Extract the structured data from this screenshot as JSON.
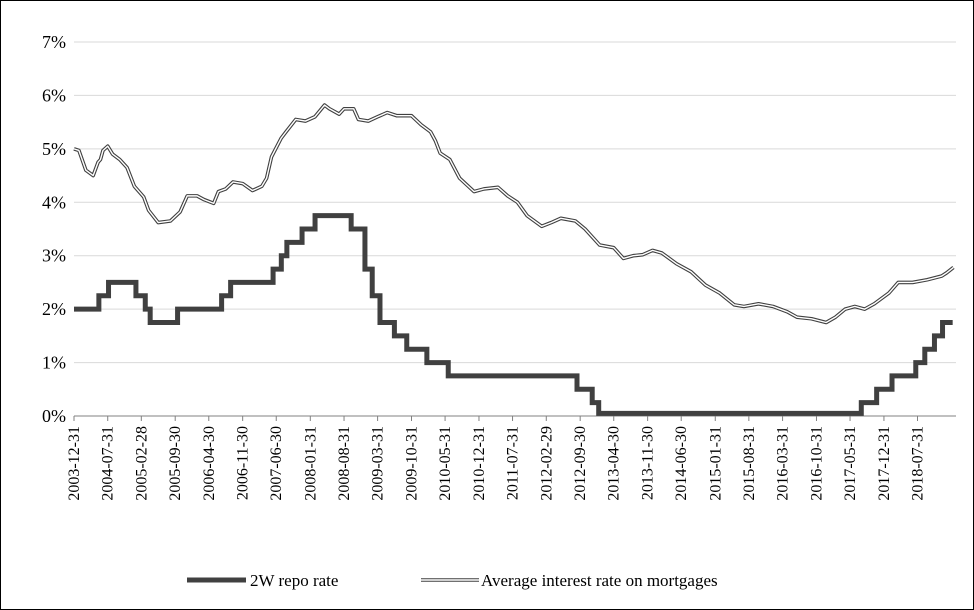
{
  "chart_data": {
    "type": "line",
    "ylim": [
      0,
      7
    ],
    "y_ticks": [
      "0%",
      "1%",
      "2%",
      "3%",
      "4%",
      "5%",
      "6%",
      "7%"
    ],
    "x_range": [
      "2003-12-31",
      "2019-03-31"
    ],
    "x_tick_labels": [
      "2003-12-31",
      "2004-07-31",
      "2005-02-28",
      "2005-09-30",
      "2006-04-30",
      "2006-11-30",
      "2007-06-30",
      "2008-01-31",
      "2008-08-31",
      "2009-03-31",
      "2009-10-31",
      "2010-05-31",
      "2010-12-31",
      "2011-07-31",
      "2012-02-29",
      "2012-09-30",
      "2013-04-30",
      "2013-11-30",
      "2014-06-30",
      "2015-01-31",
      "2015-08-31",
      "2016-03-31",
      "2016-10-31",
      "2017-05-31",
      "2017-12-31",
      "2018-07-31"
    ],
    "grid": "horizontal",
    "legend_position": "bottom",
    "series": [
      {
        "name": "2W repo rate",
        "color": "#404040",
        "style": "thick-step",
        "points": [
          [
            "2003-12-31",
            2.0
          ],
          [
            "2004-06-05",
            2.0
          ],
          [
            "2004-06-05",
            2.25
          ],
          [
            "2004-08-05",
            2.25
          ],
          [
            "2004-08-05",
            2.5
          ],
          [
            "2005-01-25",
            2.5
          ],
          [
            "2005-01-25",
            2.25
          ],
          [
            "2005-03-25",
            2.25
          ],
          [
            "2005-03-25",
            2.0
          ],
          [
            "2005-04-25",
            2.0
          ],
          [
            "2005-04-25",
            1.75
          ],
          [
            "2005-10-15",
            1.75
          ],
          [
            "2005-10-15",
            2.0
          ],
          [
            "2006-07-20",
            2.0
          ],
          [
            "2006-07-20",
            2.25
          ],
          [
            "2006-09-15",
            2.25
          ],
          [
            "2006-09-15",
            2.5
          ],
          [
            "2007-06-10",
            2.5
          ],
          [
            "2007-06-10",
            2.75
          ],
          [
            "2007-08-01",
            2.75
          ],
          [
            "2007-08-01",
            3.0
          ],
          [
            "2007-09-05",
            3.0
          ],
          [
            "2007-09-05",
            3.25
          ],
          [
            "2007-12-10",
            3.25
          ],
          [
            "2007-12-10",
            3.5
          ],
          [
            "2008-03-01",
            3.5
          ],
          [
            "2008-03-01",
            3.75
          ],
          [
            "2008-10-15",
            3.75
          ],
          [
            "2008-10-15",
            3.5
          ],
          [
            "2009-01-10",
            3.5
          ],
          [
            "2009-01-10",
            2.75
          ],
          [
            "2009-02-25",
            2.75
          ],
          [
            "2009-02-25",
            2.25
          ],
          [
            "2009-04-15",
            2.25
          ],
          [
            "2009-04-15",
            1.75
          ],
          [
            "2009-07-15",
            1.75
          ],
          [
            "2009-07-15",
            1.5
          ],
          [
            "2009-10-01",
            1.5
          ],
          [
            "2009-10-01",
            1.25
          ],
          [
            "2010-02-05",
            1.25
          ],
          [
            "2010-02-05",
            1.0
          ],
          [
            "2010-06-20",
            1.0
          ],
          [
            "2010-06-20",
            0.75
          ],
          [
            "2012-09-10",
            0.75
          ],
          [
            "2012-09-10",
            0.5
          ],
          [
            "2012-12-15",
            0.5
          ],
          [
            "2012-12-15",
            0.25
          ],
          [
            "2013-01-25",
            0.25
          ],
          [
            "2013-01-25",
            0.05
          ],
          [
            "2017-08-10",
            0.05
          ],
          [
            "2017-08-10",
            0.25
          ],
          [
            "2017-11-15",
            0.25
          ],
          [
            "2017-11-15",
            0.5
          ],
          [
            "2018-02-20",
            0.5
          ],
          [
            "2018-02-20",
            0.75
          ],
          [
            "2018-07-20",
            0.75
          ],
          [
            "2018-07-20",
            1.0
          ],
          [
            "2018-09-15",
            1.0
          ],
          [
            "2018-09-15",
            1.25
          ],
          [
            "2018-11-15",
            1.25
          ],
          [
            "2018-11-15",
            1.5
          ],
          [
            "2019-01-05",
            1.5
          ],
          [
            "2019-01-05",
            1.75
          ],
          [
            "2019-03-10",
            1.75
          ]
        ]
      },
      {
        "name": "Average interest rate on mortgages",
        "color": "#404040",
        "style": "double",
        "points": [
          [
            "2003-12-31",
            5.0
          ],
          [
            "2004-01-31",
            4.97
          ],
          [
            "2004-03-15",
            4.6
          ],
          [
            "2004-04-30",
            4.5
          ],
          [
            "2004-05-31",
            4.75
          ],
          [
            "2004-06-15",
            4.8
          ],
          [
            "2004-07-01",
            4.97
          ],
          [
            "2004-07-31",
            5.05
          ],
          [
            "2004-08-31",
            4.9
          ],
          [
            "2004-10-15",
            4.8
          ],
          [
            "2004-11-30",
            4.65
          ],
          [
            "2005-01-15",
            4.3
          ],
          [
            "2005-03-15",
            4.1
          ],
          [
            "2005-04-15",
            3.85
          ],
          [
            "2005-06-15",
            3.62
          ],
          [
            "2005-08-31",
            3.65
          ],
          [
            "2005-10-31",
            3.82
          ],
          [
            "2005-12-15",
            4.12
          ],
          [
            "2006-02-15",
            4.12
          ],
          [
            "2006-03-31",
            4.05
          ],
          [
            "2006-05-31",
            3.98
          ],
          [
            "2006-06-30",
            4.2
          ],
          [
            "2006-08-15",
            4.25
          ],
          [
            "2006-09-30",
            4.38
          ],
          [
            "2006-11-30",
            4.35
          ],
          [
            "2007-01-31",
            4.22
          ],
          [
            "2007-03-31",
            4.3
          ],
          [
            "2007-04-30",
            4.45
          ],
          [
            "2007-05-31",
            4.85
          ],
          [
            "2007-07-31",
            5.2
          ],
          [
            "2007-08-31",
            5.32
          ],
          [
            "2007-10-31",
            5.55
          ],
          [
            "2007-12-31",
            5.52
          ],
          [
            "2008-02-29",
            5.6
          ],
          [
            "2008-04-30",
            5.82
          ],
          [
            "2008-05-31",
            5.75
          ],
          [
            "2008-07-31",
            5.65
          ],
          [
            "2008-08-31",
            5.75
          ],
          [
            "2008-10-31",
            5.75
          ],
          [
            "2008-11-30",
            5.55
          ],
          [
            "2009-01-31",
            5.52
          ],
          [
            "2009-03-31",
            5.6
          ],
          [
            "2009-05-31",
            5.68
          ],
          [
            "2009-07-31",
            5.62
          ],
          [
            "2009-10-31",
            5.62
          ],
          [
            "2009-12-31",
            5.45
          ],
          [
            "2010-02-28",
            5.32
          ],
          [
            "2010-03-31",
            5.15
          ],
          [
            "2010-04-30",
            4.92
          ],
          [
            "2010-06-30",
            4.8
          ],
          [
            "2010-08-31",
            4.45
          ],
          [
            "2010-11-30",
            4.2
          ],
          [
            "2011-01-31",
            4.25
          ],
          [
            "2011-04-30",
            4.28
          ],
          [
            "2011-06-30",
            4.12
          ],
          [
            "2011-08-31",
            4.0
          ],
          [
            "2011-10-31",
            3.75
          ],
          [
            "2012-01-31",
            3.55
          ],
          [
            "2012-03-31",
            3.62
          ],
          [
            "2012-05-31",
            3.7
          ],
          [
            "2012-08-31",
            3.65
          ],
          [
            "2012-10-31",
            3.5
          ],
          [
            "2013-01-31",
            3.2
          ],
          [
            "2013-04-30",
            3.15
          ],
          [
            "2013-06-30",
            2.95
          ],
          [
            "2013-08-31",
            3.0
          ],
          [
            "2013-10-31",
            3.02
          ],
          [
            "2013-12-31",
            3.1
          ],
          [
            "2014-02-28",
            3.05
          ],
          [
            "2014-05-31",
            2.85
          ],
          [
            "2014-08-31",
            2.7
          ],
          [
            "2014-11-30",
            2.45
          ],
          [
            "2015-02-28",
            2.3
          ],
          [
            "2015-05-31",
            2.08
          ],
          [
            "2015-07-31",
            2.05
          ],
          [
            "2015-10-31",
            2.1
          ],
          [
            "2016-01-31",
            2.05
          ],
          [
            "2016-04-30",
            1.95
          ],
          [
            "2016-06-30",
            1.85
          ],
          [
            "2016-09-30",
            1.82
          ],
          [
            "2016-12-31",
            1.75
          ],
          [
            "2017-02-28",
            1.85
          ],
          [
            "2017-04-30",
            2.0
          ],
          [
            "2017-06-30",
            2.05
          ],
          [
            "2017-08-31",
            2.0
          ],
          [
            "2017-10-31",
            2.1
          ],
          [
            "2018-01-31",
            2.3
          ],
          [
            "2018-03-31",
            2.5
          ],
          [
            "2018-06-30",
            2.5
          ],
          [
            "2018-09-30",
            2.55
          ],
          [
            "2018-12-31",
            2.62
          ],
          [
            "2019-01-31",
            2.68
          ],
          [
            "2019-03-15",
            2.78
          ]
        ]
      }
    ]
  }
}
